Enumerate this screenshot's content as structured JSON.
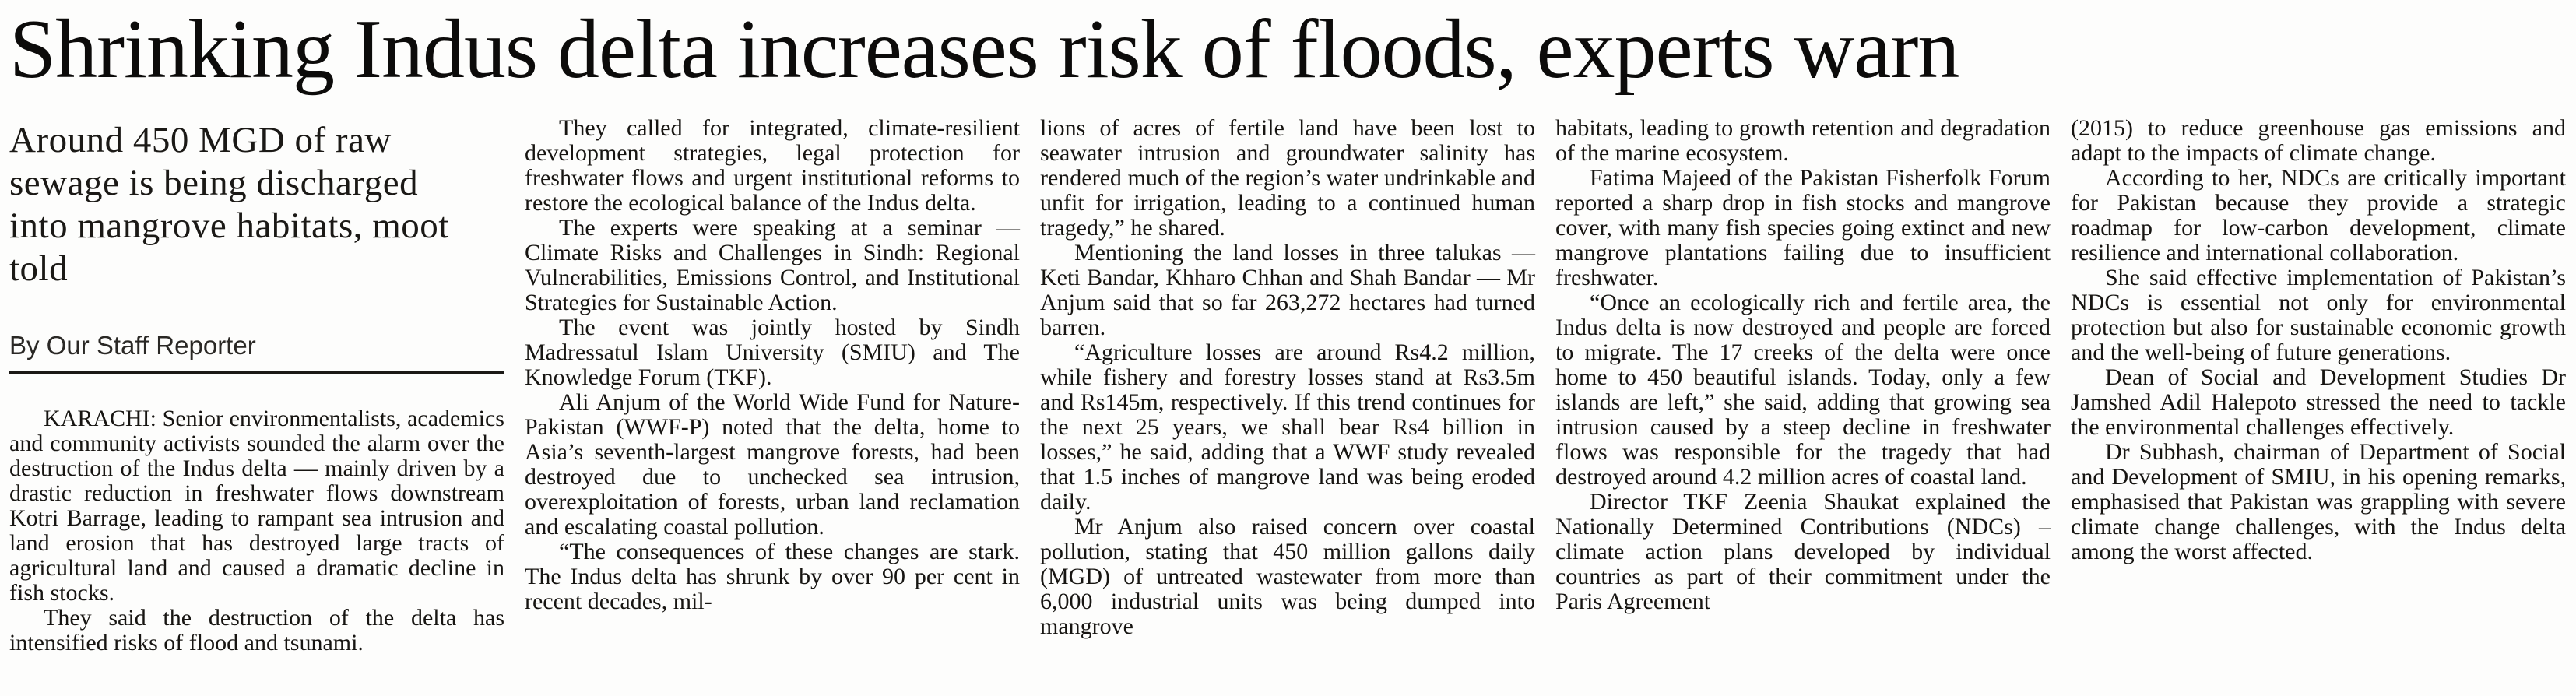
{
  "colors": {
    "ink": "#161412",
    "background": "#fdfdfc"
  },
  "article": {
    "headline": "Shrinking Indus delta increases risk of floods, experts warn",
    "standfirst": "Around 450 MGD of raw sewage is being discharged into mangrove habitats, moot told",
    "byline": "By Our Staff Reporter",
    "columns": [
      {
        "paragraphs": [
          {
            "indent": true,
            "text": "KARACHI: Senior environmentalists, academics and community activists sounded the alarm over the destruction of the Indus delta — mainly driven by a drastic reduction in freshwater flows downstream Kotri Barrage, leading to rampant sea intrusion and land erosion that has destroyed large tracts of agricultural land and caused a dramatic decline in fish stocks."
          },
          {
            "indent": true,
            "text": "They said the destruction of the delta has intensified risks of flood and tsunami."
          }
        ]
      },
      {
        "paragraphs": [
          {
            "indent": true,
            "text": "They called for integrated, climate-resilient development strategies, legal protection for freshwater flows and urgent institutional reforms to restore the ecological balance of the Indus delta."
          },
          {
            "indent": true,
            "text": "The experts were speaking at a seminar — Climate Risks and Challenges in Sindh: Regional Vulnerabilities, Emissions Control, and Institutional Strategies for Sustainable Action."
          },
          {
            "indent": true,
            "text": "The event was jointly hosted by Sindh Madressatul Islam University (SMIU) and The Knowledge Forum (TKF)."
          },
          {
            "indent": true,
            "text": "Ali Anjum of the World Wide Fund for Nature-Pakistan (WWF-P) noted that the delta, home to Asia’s seventh-largest mangrove forests, had been destroyed due to unchecked sea intrusion, overexploitation of forests, urban land reclamation and escalating coastal pollution."
          },
          {
            "indent": true,
            "text": "“The consequences of these changes are stark. The Indus delta has shrunk by over 90 per cent in recent decades, mil-"
          }
        ]
      },
      {
        "paragraphs": [
          {
            "indent": false,
            "text": "lions of acres of fertile land have been lost to seawater intrusion and groundwater salinity has rendered much of the region’s water undrinkable and unfit for irrigation, leading to a continued human tragedy,” he shared."
          },
          {
            "indent": true,
            "text": "Mentioning the land losses in three talukas — Keti Bandar, Khharo Chhan and Shah Bandar — Mr Anjum said that so far 263,272 hectares had turned barren."
          },
          {
            "indent": true,
            "text": "“Agriculture losses are around Rs4.2 million, while fishery and forestry losses stand at Rs3.5m and Rs145m, respectively. If this trend continues for the next 25 years, we shall bear Rs4 billion in losses,” he said, adding that a WWF study revealed that 1.5 inches of mangrove land was being eroded daily."
          },
          {
            "indent": true,
            "text": "Mr Anjum also raised concern over coastal pollution, stating that 450 million gallons daily (MGD) of untreated wastewater from more than 6,000 industrial units was being dumped into mangrove"
          }
        ]
      },
      {
        "paragraphs": [
          {
            "indent": false,
            "text": "habitats, leading to growth retention and degradation of the marine ecosystem."
          },
          {
            "indent": true,
            "text": "Fatima Majeed of the Pakistan Fisherfolk Forum reported a sharp drop in fish stocks and mangrove cover, with many fish species going extinct and new mangrove plantations failing due to insufficient freshwater."
          },
          {
            "indent": true,
            "text": "“Once an ecologically rich and fertile area, the Indus delta is now destroyed and people are forced to migrate. The 17 creeks of the delta were once home to 450 beautiful islands. Today, only a few islands are left,” she said, adding that growing sea intrusion caused by a steep decline in freshwater flows was responsible for the tragedy that had destroyed around 4.2 million acres of coastal land."
          },
          {
            "indent": true,
            "text": "Director TKF Zeenia Shaukat explained the Nationally Determined Contributions (NDCs) – climate action plans developed by individual countries as part of their commitment under the Paris Agreement"
          }
        ]
      },
      {
        "paragraphs": [
          {
            "indent": false,
            "text": "(2015) to reduce greenhouse gas emissions and adapt to the impacts of climate change."
          },
          {
            "indent": true,
            "text": "According to her, NDCs are critically important for Pakistan because they provide a strategic roadmap for low-carbon development, climate resilience and international collaboration."
          },
          {
            "indent": true,
            "text": "She said effective implementation of Pakistan’s NDCs is essential not only for environmental protection but also for sustainable economic growth and the well-being of future generations."
          },
          {
            "indent": true,
            "text": "Dean of Social and Development Studies Dr Jamshed Adil Halepoto stressed the need to tackle the environmental challenges effectively."
          },
          {
            "indent": true,
            "text": "Dr Subhash, chairman of Department of Social and Development of SMIU, in his opening remarks, emphasised that Pakistan was grappling with severe climate change challenges, with the Indus delta among the worst affected."
          }
        ]
      }
    ]
  }
}
